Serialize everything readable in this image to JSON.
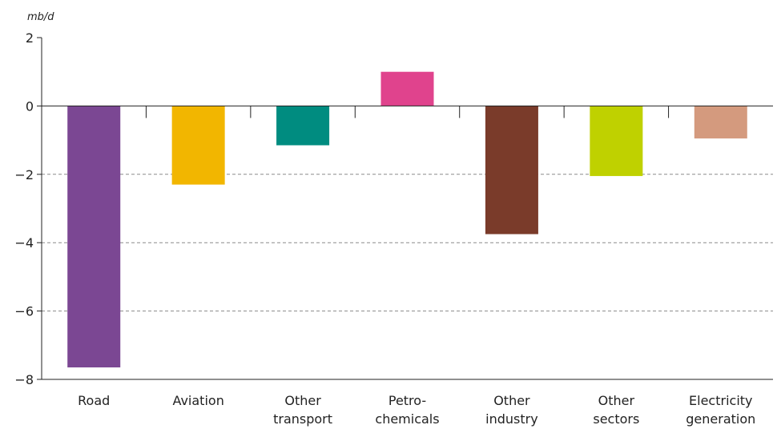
{
  "chart_data": {
    "type": "bar",
    "unit_label": "mb/d",
    "categories": [
      [
        "Road"
      ],
      [
        "Aviation"
      ],
      [
        "Other",
        "transport"
      ],
      [
        "Petro-",
        "chemicals"
      ],
      [
        "Other",
        "industry"
      ],
      [
        "Other",
        "sectors"
      ],
      [
        "Electricity",
        "generation"
      ]
    ],
    "values": [
      -7.65,
      -2.3,
      -1.15,
      1.0,
      -3.75,
      -2.05,
      -0.95
    ],
    "colors": [
      "#7B4793",
      "#F2B600",
      "#008C80",
      "#E0438D",
      "#7A3B2A",
      "#BFD100",
      "#D49A7E"
    ],
    "ylim": [
      -8,
      2
    ],
    "yticks": [
      2,
      0,
      -2,
      -4,
      -6,
      -8
    ],
    "dashed_gridlines": [
      -2,
      -4,
      -6
    ],
    "grid": "horizontal-dashed",
    "legend": "none"
  }
}
